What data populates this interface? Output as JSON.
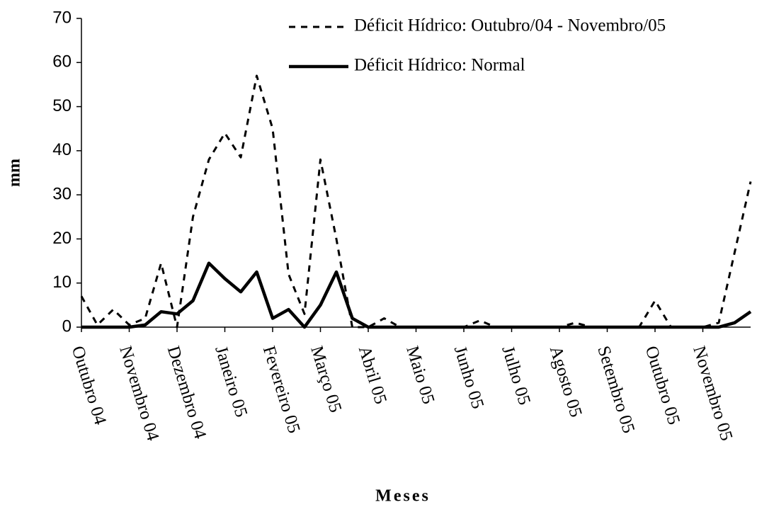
{
  "chart_data": {
    "type": "line",
    "x_label": "Meses",
    "y_label": "mm",
    "categories": [
      "Outubro 04",
      null,
      null,
      "Novembro 04",
      null,
      null,
      "Dezembro 04",
      null,
      null,
      "Janeiro 05",
      null,
      null,
      "Fevereiro 05",
      null,
      null,
      "Março 05",
      null,
      null,
      "Abril 05",
      null,
      null,
      "Maio 05",
      null,
      null,
      "Junho 05",
      null,
      null,
      "Julho 05",
      null,
      null,
      "Agosto 05",
      null,
      null,
      "Setembro 05",
      null,
      null,
      "Outubro 05",
      null,
      null,
      "Novembro 05",
      null,
      null,
      null
    ],
    "series": [
      {
        "name": "Déficit Hídrico: Outubro/04 - Novembro/05",
        "color": "#000000",
        "linestyle": "dashed",
        "values": [
          7,
          0.5,
          4,
          0.5,
          2,
          14.5,
          0,
          25,
          38,
          44,
          38.5,
          57,
          45,
          12,
          3,
          38,
          20,
          0,
          0,
          2,
          0,
          0,
          0,
          0,
          0,
          1.5,
          0,
          0,
          0,
          0,
          0,
          1,
          0,
          0,
          0,
          0,
          6,
          0,
          0,
          0,
          1,
          17,
          33
        ]
      },
      {
        "name": "Déficit Hídrico: Normal",
        "color": "#000000",
        "linestyle": "solid",
        "values": [
          0,
          0,
          0,
          0,
          0.5,
          3.5,
          3,
          6,
          14.5,
          11,
          8,
          12.5,
          2,
          4,
          0,
          5,
          12.5,
          2,
          0,
          0,
          0,
          0,
          0,
          0,
          0,
          0,
          0,
          0,
          0,
          0,
          0,
          0,
          0,
          0,
          0,
          0,
          0,
          0,
          0,
          0,
          0,
          1,
          3.5
        ]
      }
    ],
    "ylim": [
      0,
      70
    ],
    "yticks": [
      0,
      10,
      20,
      30,
      40,
      50,
      60,
      70
    ],
    "legend": "upper right",
    "grid": false
  }
}
